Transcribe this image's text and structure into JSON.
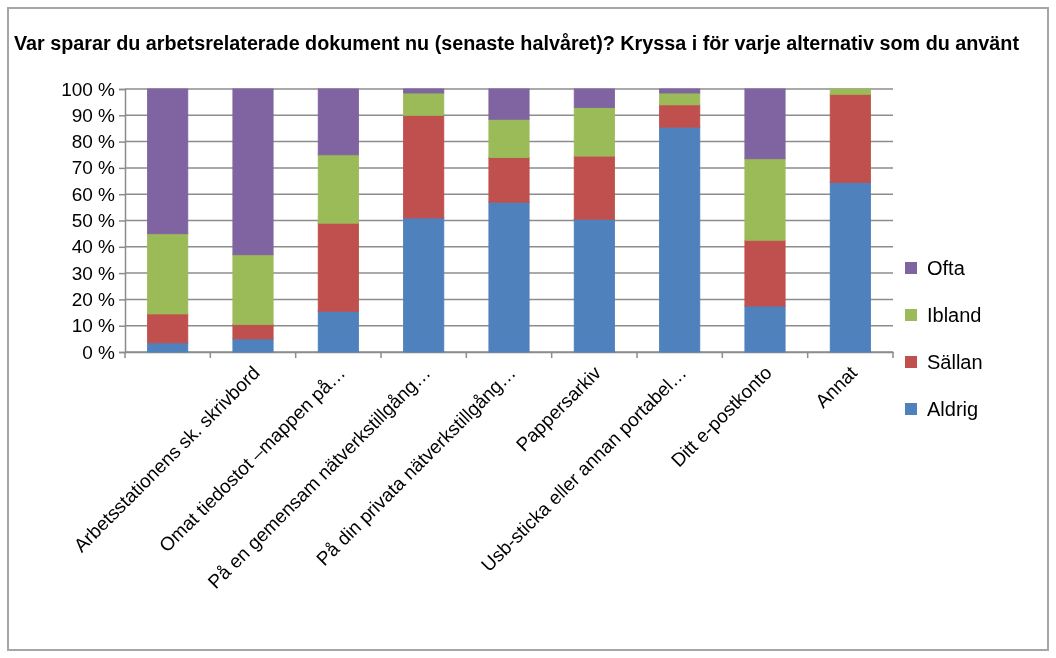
{
  "chart_data": {
    "type": "bar",
    "stacked": true,
    "title": "Var sparar du arbetsrelaterade dokument nu (senaste halvåret)? Kryssa i för varje alternativ som du använt",
    "categories": [
      null,
      "Arbetsstationens sk. skrivbord",
      "Omat tiedostot –mappen på…",
      "På en gemensam nätverkstillgång…",
      "På din privata nätverkstillgång…",
      "Pappersarkiv",
      "Usb-sticka eller annan portabel…",
      "Ditt e-postkonto",
      "Annat"
    ],
    "series": [
      {
        "name": "Aldrig",
        "color": "#4f81bd",
        "values": [
          3.5,
          5,
          15.5,
          51,
          57,
          50.5,
          85.5,
          17.5,
          64.5
        ]
      },
      {
        "name": "Sällan",
        "color": "#c0504d",
        "values": [
          11,
          5.5,
          33.5,
          39,
          17,
          24,
          8.5,
          25,
          33.5
        ]
      },
      {
        "name": "Ibland",
        "color": "#9bbb59",
        "values": [
          30.5,
          26.5,
          26,
          8.5,
          14.5,
          18.5,
          4.5,
          31,
          2
        ]
      },
      {
        "name": "Ofta",
        "color": "#8064a2",
        "values": [
          55,
          63,
          25,
          1.5,
          11.5,
          7,
          1.5,
          26.5,
          0
        ]
      }
    ],
    "ylim": [
      0,
      100
    ],
    "yticks": [
      {
        "value": 0,
        "label": "0 %"
      },
      {
        "value": 10,
        "label": "10 %"
      },
      {
        "value": 20,
        "label": "20 %"
      },
      {
        "value": 30,
        "label": "30 %"
      },
      {
        "value": 40,
        "label": "40 %"
      },
      {
        "value": 50,
        "label": "50 %"
      },
      {
        "value": 60,
        "label": "60 %"
      },
      {
        "value": 70,
        "label": "70 %"
      },
      {
        "value": 80,
        "label": "80 %"
      },
      {
        "value": 90,
        "label": "90 %"
      },
      {
        "value": 100,
        "label": "100 %"
      }
    ],
    "grid": "y",
    "legend": "right"
  }
}
